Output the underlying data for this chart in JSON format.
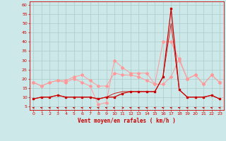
{
  "x": [
    0,
    1,
    2,
    3,
    4,
    5,
    6,
    7,
    8,
    9,
    10,
    11,
    12,
    13,
    14,
    15,
    16,
    17,
    18,
    19,
    20,
    21,
    22,
    23
  ],
  "series_mean": [
    9,
    10,
    10,
    11,
    10,
    10,
    10,
    10,
    9,
    10,
    10,
    12,
    13,
    13,
    13,
    13,
    21,
    58,
    14,
    10,
    10,
    10,
    11,
    9
  ],
  "series_gust": [
    18,
    16,
    18,
    19,
    19,
    21,
    22,
    19,
    16,
    16,
    23,
    22,
    22,
    21,
    19,
    17,
    17,
    21,
    31,
    20,
    22,
    17,
    22,
    18
  ],
  "series_max_mean": [
    9,
    10,
    10,
    11,
    10,
    10,
    10,
    10,
    9,
    10,
    12,
    13,
    13,
    13,
    13,
    13,
    21,
    50,
    14,
    10,
    10,
    10,
    11,
    9
  ],
  "series_max_gust": [
    18,
    16,
    18,
    19,
    18,
    20,
    18,
    16,
    6,
    7,
    30,
    26,
    23,
    23,
    23,
    17,
    40,
    40,
    30,
    20,
    22,
    17,
    22,
    18
  ],
  "bg_color": "#cce8e8",
  "grid_color": "#aacccc",
  "color_dark": "#cc0000",
  "color_light": "#ff9999",
  "xlabel": "Vent moyen/en rafales ( km/h )",
  "ylim": [
    3,
    62
  ],
  "xlim": [
    -0.5,
    23.5
  ],
  "yticks": [
    5,
    10,
    15,
    20,
    25,
    30,
    35,
    40,
    45,
    50,
    55,
    60
  ],
  "xticks": [
    0,
    1,
    2,
    3,
    4,
    5,
    6,
    7,
    8,
    9,
    10,
    11,
    12,
    13,
    14,
    15,
    16,
    17,
    18,
    19,
    20,
    21,
    22,
    23
  ],
  "wind_dirs_deg": [
    225,
    225,
    225,
    225,
    225,
    225,
    225,
    225,
    225,
    225,
    270,
    90,
    225,
    225,
    225,
    225,
    225,
    225,
    225,
    225,
    225,
    225,
    225,
    225
  ]
}
